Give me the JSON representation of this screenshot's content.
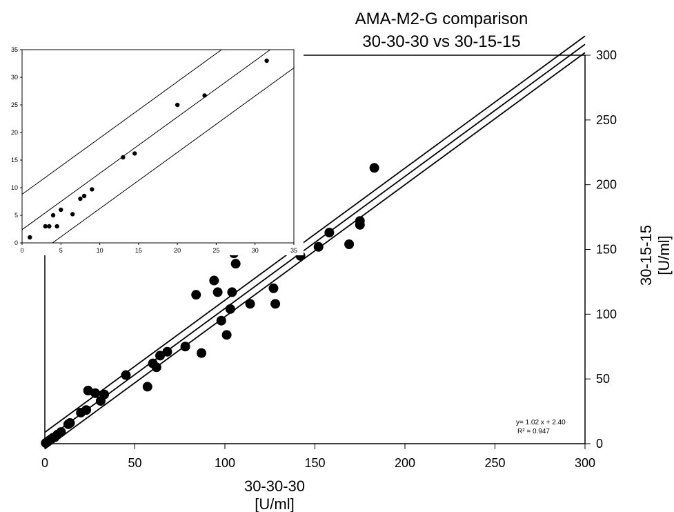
{
  "chart_data": [
    {
      "type": "scatter",
      "title_lines": [
        "AMA-M2-G comparison",
        "30-30-30 vs 30-15-15"
      ],
      "xlabel_lines": [
        "30-30-30",
        "[U/ml]"
      ],
      "ylabel_lines": [
        "30-15-15",
        "[U/ml]"
      ],
      "xlim": [
        0,
        300
      ],
      "ylim": [
        0,
        300
      ],
      "xticks": [
        "0",
        "50",
        "100",
        "150",
        "200",
        "250",
        "300"
      ],
      "yticks": [
        "0",
        "50",
        "100",
        "150",
        "200",
        "250",
        "300"
      ],
      "grid": false,
      "annotation_lines": [
        "y= 1.02 x + 2.40",
        "R² = 0.947"
      ],
      "regression": {
        "slope": 1.02,
        "intercept": 2.4,
        "band": 6.4
      },
      "points": [
        [
          0.5,
          0.5
        ],
        [
          1.5,
          1.5
        ],
        [
          2.5,
          2.5
        ],
        [
          3.5,
          3.5
        ],
        [
          4.5,
          4.5
        ],
        [
          5.5,
          5
        ],
        [
          7,
          7
        ],
        [
          9,
          9
        ],
        [
          13,
          15
        ],
        [
          14,
          16
        ],
        [
          20,
          24
        ],
        [
          23,
          26
        ],
        [
          24,
          41
        ],
        [
          28,
          39
        ],
        [
          31,
          33
        ],
        [
          33,
          38
        ],
        [
          45,
          53
        ],
        [
          57,
          44
        ],
        [
          60,
          62
        ],
        [
          62,
          59
        ],
        [
          64,
          68
        ],
        [
          68,
          71
        ],
        [
          78,
          75
        ],
        [
          84,
          115
        ],
        [
          87,
          70
        ],
        [
          94,
          126
        ],
        [
          96,
          117
        ],
        [
          98,
          95
        ],
        [
          101,
          84
        ],
        [
          103,
          104
        ],
        [
          104,
          117
        ],
        [
          105,
          147
        ],
        [
          106,
          139
        ],
        [
          114,
          108
        ],
        [
          127,
          120
        ],
        [
          128,
          108
        ],
        [
          142,
          145
        ],
        [
          152,
          152
        ],
        [
          158,
          163
        ],
        [
          169,
          154
        ],
        [
          175,
          169
        ],
        [
          175,
          172
        ],
        [
          183,
          213
        ]
      ]
    },
    {
      "type": "scatter",
      "xlim": [
        0,
        35
      ],
      "ylim": [
        0,
        35
      ],
      "xticks": [
        "0",
        "5",
        "10",
        "15",
        "20",
        "25",
        "30",
        "35"
      ],
      "yticks": [
        "0",
        "5",
        "10",
        "15",
        "20",
        "25",
        "30",
        "35"
      ],
      "grid": false,
      "regression": {
        "slope": 1.02,
        "intercept": 2.4,
        "band": 6.4
      },
      "points": [
        [
          1,
          1
        ],
        [
          3,
          3
        ],
        [
          3.5,
          3
        ],
        [
          4,
          5
        ],
        [
          4.5,
          3
        ],
        [
          5,
          6
        ],
        [
          6.5,
          5.2
        ],
        [
          7.5,
          8
        ],
        [
          8,
          8.5
        ],
        [
          9,
          9.7
        ],
        [
          13,
          15.5
        ],
        [
          14.5,
          16.2
        ],
        [
          20,
          25
        ],
        [
          23.5,
          26.7
        ],
        [
          31.5,
          33
        ]
      ]
    }
  ]
}
